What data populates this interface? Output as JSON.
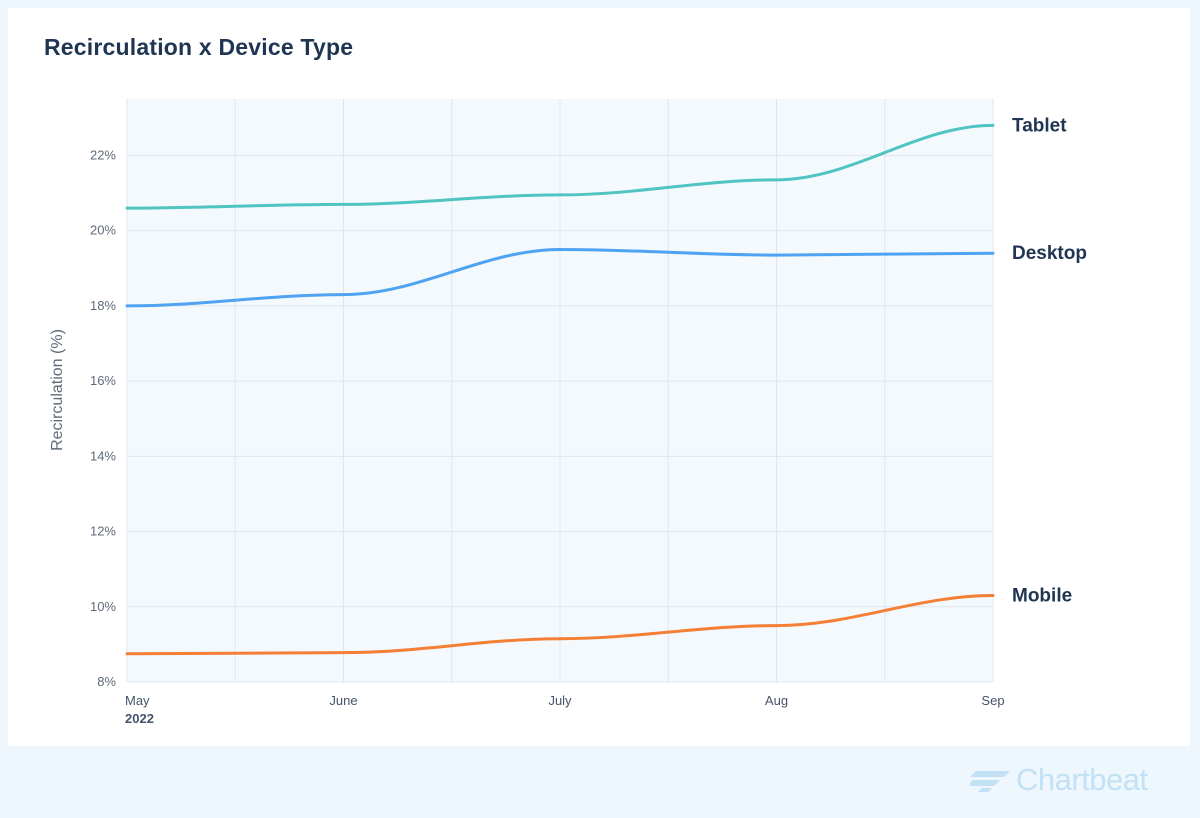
{
  "brand": {
    "name": "Chartbeat",
    "icon": "chartbeat-logo-icon",
    "color": "#c2e1f5"
  },
  "chart_data": {
    "type": "line",
    "title": "Recirculation x Device Type",
    "xlabel": "",
    "ylabel": "Recirculation (%)",
    "x": [
      "May",
      "June",
      "July",
      "Aug",
      "Sep"
    ],
    "x_year_label": "2022",
    "yticks": [
      8,
      10,
      12,
      14,
      16,
      18,
      20,
      22
    ],
    "ytick_suffix": "%",
    "ylim": [
      8,
      23.5
    ],
    "grid": true,
    "legend": "direct labels at line ends",
    "series": [
      {
        "name": "Tablet",
        "color": "#4fc4c0",
        "values": [
          20.6,
          20.7,
          20.95,
          21.35,
          22.8
        ]
      },
      {
        "name": "Desktop",
        "color": "#4fa3f0",
        "values": [
          18.0,
          18.3,
          19.5,
          19.35,
          19.4
        ]
      },
      {
        "name": "Mobile",
        "color": "#f47f35",
        "values": [
          8.75,
          8.78,
          9.15,
          9.5,
          10.3
        ]
      }
    ]
  }
}
